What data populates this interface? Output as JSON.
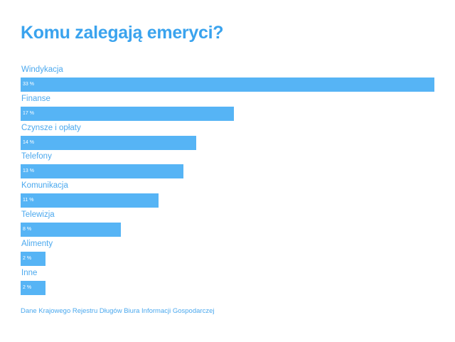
{
  "chart_data": {
    "type": "bar",
    "orientation": "horizontal",
    "title": "Komu zalegają emeryci?",
    "categories": [
      "Windykacja",
      "Finanse",
      "Czynsze i opłaty",
      "Telefony",
      "Komunikacja",
      "Telewizja",
      "Alimenty",
      "Inne"
    ],
    "values": [
      33,
      17,
      14,
      13,
      11,
      8,
      2,
      2
    ],
    "value_labels": [
      "33 %",
      "17 %",
      "14 %",
      "13 %",
      "11 %",
      "8 %",
      "2 %",
      "2 %"
    ],
    "unit": "%",
    "xlim": [
      0,
      33
    ],
    "grid": false,
    "legend": "none",
    "bar_color": "#56b4f5",
    "title_color": "#3aa3ee",
    "source": "Dane Krajowego Rejestru Długów Biura Informacji Gospodarczej"
  }
}
